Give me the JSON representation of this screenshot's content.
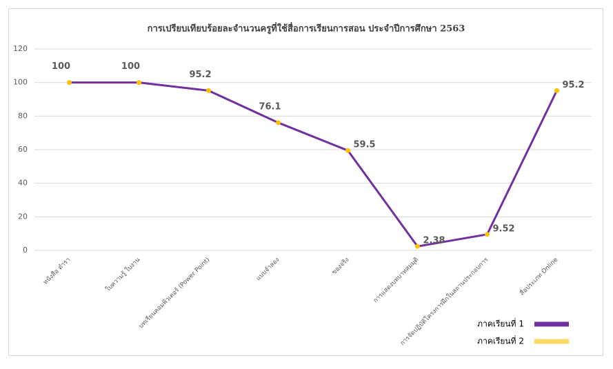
{
  "chart_data": {
    "type": "line",
    "title": "การเปรียบเทียบร้อยละจำนวนครูที่ใช้สื่อการเรียนการสอน ประจำปีการศึกษา 2563",
    "categories": [
      "หนังสือ ตำรา",
      "ใบความรู้ ใบงาน",
      "บทเรียนคอมพิวเตอร์ (Power Point)",
      "แบบจำลอง",
      "ของจริง",
      "การแสดงบทบาทสมมุติ",
      "การจัดปฏิบัติโครงการฝึกในสถานประกอบการ",
      "สื่อประเภท Online"
    ],
    "series": [
      {
        "name": "ภาคเรียนที่ 1",
        "color": "#7030a0",
        "values": [
          100,
          100,
          95.2,
          76.1,
          59.5,
          2.38,
          9.52,
          95.2
        ]
      },
      {
        "name": "ภาคเรียนที่ 2",
        "color": "#ffd966",
        "values": [
          100,
          100,
          95.2,
          76.1,
          59.5,
          2.38,
          9.52,
          95.2
        ]
      }
    ],
    "ylim": [
      0,
      120
    ],
    "yticks": [
      0,
      20,
      40,
      60,
      80,
      100,
      120
    ],
    "grid": true,
    "legend": "bottom-right"
  }
}
